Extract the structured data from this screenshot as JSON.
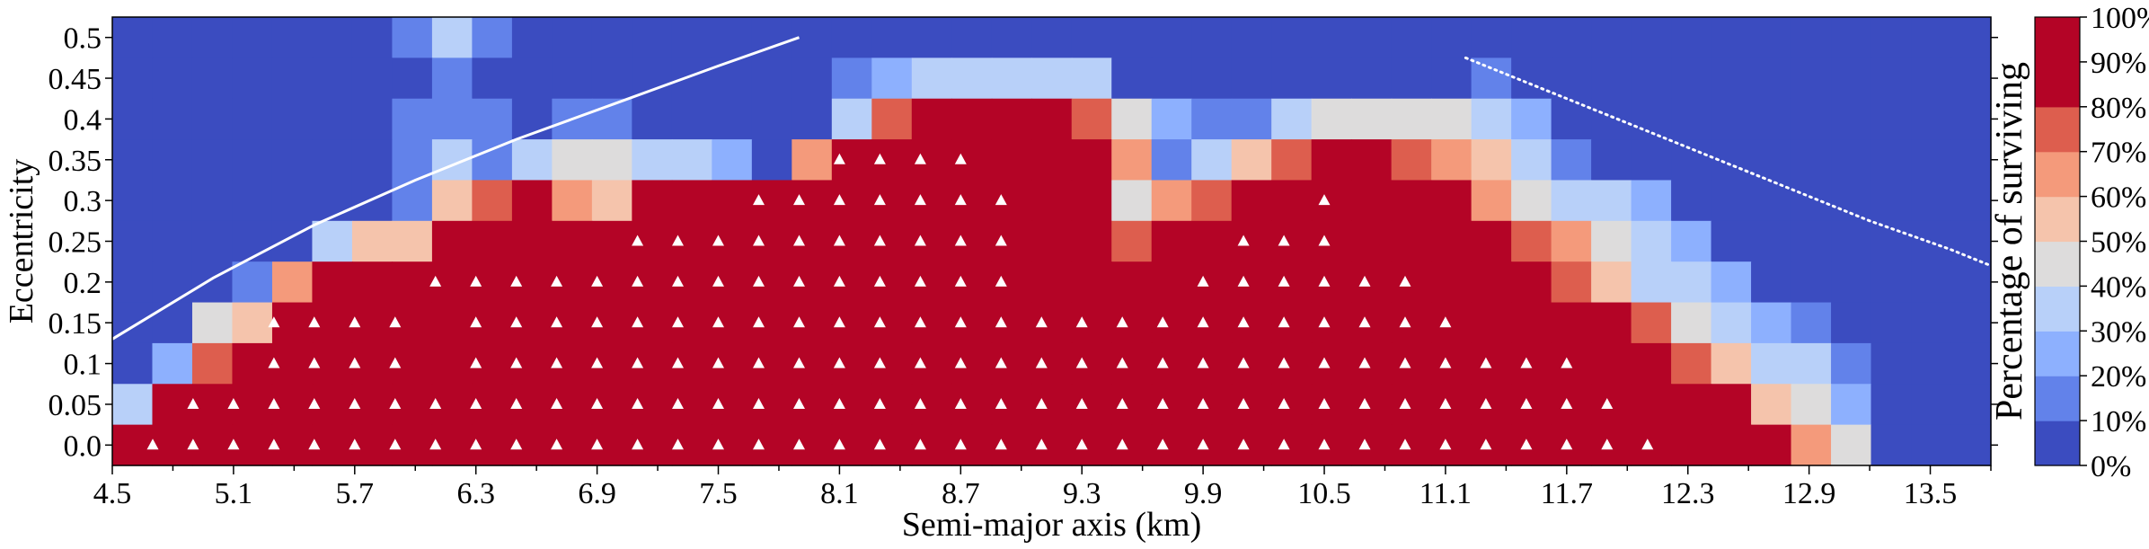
{
  "chart_data": {
    "type": "heatmap",
    "xlabel": "Semi-major axis (km)",
    "ylabel": "Eccentricity",
    "colorbar_label": "Percentage of surviving",
    "x_tick_labels": [
      "4.5",
      "5.1",
      "5.7",
      "6.3",
      "6.9",
      "7.5",
      "8.1",
      "8.7",
      "9.3",
      "9.9",
      "10.5",
      "11.1",
      "11.7",
      "12.3",
      "12.9",
      "13.5"
    ],
    "x_tick_values": [
      4.5,
      5.1,
      5.7,
      6.3,
      6.9,
      7.5,
      8.1,
      8.7,
      9.3,
      9.9,
      10.5,
      11.1,
      11.7,
      12.3,
      12.9,
      13.5
    ],
    "xlim": [
      4.5,
      13.8
    ],
    "x_cell_step": 0.2,
    "y_tick_labels": [
      "0.0",
      "0.05",
      "0.1",
      "0.15",
      "0.2",
      "0.25",
      "0.3",
      "0.35",
      "0.4",
      "0.45",
      "0.5"
    ],
    "y_values": [
      0.0,
      0.05,
      0.1,
      0.15,
      0.2,
      0.25,
      0.3,
      0.35,
      0.4,
      0.45,
      0.5
    ],
    "ylim": [
      -0.025,
      0.525
    ],
    "colorbar_tick_labels": [
      "0%",
      "10%",
      "20%",
      "30%",
      "40%",
      "50%",
      "60%",
      "70%",
      "80%",
      "90%",
      "100%"
    ],
    "colors": {
      "bins": [
        "#3b4cc0",
        "#6282ea",
        "#8db0fe",
        "#b8d0f9",
        "#dddcdc",
        "#f5c4ac",
        "#f49a7b",
        "#dd5e4e",
        "#b40426",
        "#b40426"
      ]
    },
    "curves": [
      {
        "name": "solid boundary",
        "style": "solid",
        "color": "#ffffff",
        "x": [
          4.5,
          5.0,
          5.5,
          6.0,
          6.5,
          7.0,
          7.5,
          7.9
        ],
        "y": [
          0.13,
          0.205,
          0.27,
          0.325,
          0.375,
          0.42,
          0.465,
          0.5
        ]
      },
      {
        "name": "dotted boundary",
        "style": "dotted",
        "color": "#ffffff",
        "x": [
          11.2,
          11.6,
          12.0,
          12.4,
          12.8,
          13.2,
          13.6,
          13.8
        ],
        "y": [
          0.475,
          0.435,
          0.395,
          0.355,
          0.315,
          0.275,
          0.24,
          0.22
        ]
      }
    ],
    "rows": [
      {
        "e": 0.5,
        "values": [
          0,
          0,
          0,
          0,
          0,
          0,
          0,
          10,
          30,
          10,
          0,
          0,
          0,
          0,
          0,
          0,
          0,
          0,
          0,
          0,
          0,
          0,
          0,
          0,
          0,
          0,
          0,
          0,
          0,
          0,
          0,
          0,
          0,
          0,
          0,
          0,
          0,
          0,
          0,
          0,
          0,
          0,
          0,
          0,
          0,
          0,
          0
        ]
      },
      {
        "e": 0.45,
        "values": [
          0,
          0,
          0,
          0,
          0,
          0,
          0,
          0,
          10,
          0,
          0,
          0,
          0,
          0,
          0,
          0,
          0,
          0,
          10,
          20,
          30,
          30,
          30,
          30,
          30,
          0,
          0,
          0,
          0,
          0,
          0,
          0,
          0,
          0,
          10,
          0,
          0,
          0,
          0,
          0,
          0,
          0,
          0,
          0,
          0,
          0,
          0
        ]
      },
      {
        "e": 0.4,
        "values": [
          0,
          0,
          0,
          0,
          0,
          0,
          0,
          10,
          10,
          10,
          0,
          10,
          10,
          0,
          0,
          0,
          0,
          0,
          30,
          70,
          80,
          100,
          100,
          100,
          70,
          40,
          20,
          10,
          10,
          30,
          40,
          40,
          40,
          40,
          30,
          20,
          0,
          0,
          0,
          0,
          0,
          0,
          0,
          0,
          0,
          0,
          0
        ]
      },
      {
        "e": 0.35,
        "values": [
          0,
          0,
          0,
          0,
          0,
          0,
          0,
          10,
          30,
          10,
          30,
          40,
          40,
          30,
          30,
          20,
          0,
          60,
          80,
          100,
          100,
          100,
          100,
          100,
          100,
          60,
          10,
          30,
          50,
          70,
          80,
          80,
          70,
          60,
          50,
          30,
          10,
          0,
          0,
          0,
          0,
          0,
          0,
          0,
          0,
          0,
          0
        ]
      },
      {
        "e": 0.3,
        "values": [
          0,
          0,
          0,
          0,
          0,
          0,
          0,
          10,
          50,
          70,
          80,
          60,
          50,
          80,
          80,
          100,
          100,
          100,
          100,
          100,
          100,
          100,
          100,
          100,
          100,
          40,
          60,
          70,
          100,
          100,
          100,
          100,
          100,
          80,
          60,
          40,
          30,
          30,
          20,
          0,
          0,
          0,
          0,
          0,
          0,
          0,
          0
        ]
      },
      {
        "e": 0.25,
        "values": [
          0,
          0,
          0,
          0,
          0,
          30,
          50,
          50,
          80,
          100,
          100,
          80,
          100,
          100,
          100,
          100,
          100,
          100,
          100,
          100,
          100,
          100,
          100,
          100,
          100,
          70,
          80,
          80,
          100,
          100,
          100,
          100,
          100,
          100,
          100,
          70,
          60,
          40,
          30,
          20,
          0,
          0,
          0,
          0,
          0,
          0,
          0
        ]
      },
      {
        "e": 0.2,
        "values": [
          0,
          0,
          0,
          10,
          60,
          100,
          100,
          100,
          100,
          100,
          100,
          100,
          100,
          100,
          100,
          100,
          100,
          100,
          100,
          100,
          100,
          100,
          100,
          100,
          100,
          100,
          100,
          100,
          100,
          100,
          100,
          100,
          100,
          100,
          100,
          100,
          70,
          50,
          30,
          30,
          20,
          0,
          0,
          0,
          0,
          0,
          0
        ]
      },
      {
        "e": 0.15,
        "values": [
          0,
          0,
          40,
          50,
          100,
          100,
          100,
          100,
          100,
          100,
          100,
          100,
          100,
          100,
          100,
          100,
          100,
          100,
          100,
          100,
          100,
          100,
          100,
          100,
          100,
          100,
          100,
          100,
          100,
          100,
          100,
          100,
          100,
          100,
          100,
          100,
          100,
          100,
          70,
          40,
          30,
          20,
          10,
          0,
          0,
          0,
          0
        ]
      },
      {
        "e": 0.1,
        "values": [
          0,
          20,
          70,
          80,
          100,
          100,
          100,
          100,
          100,
          100,
          100,
          100,
          100,
          100,
          100,
          100,
          100,
          100,
          100,
          100,
          100,
          100,
          100,
          100,
          100,
          100,
          100,
          100,
          100,
          100,
          100,
          100,
          100,
          100,
          100,
          100,
          100,
          100,
          100,
          70,
          50,
          30,
          30,
          10,
          0,
          0,
          0
        ]
      },
      {
        "e": 0.05,
        "values": [
          30,
          80,
          100,
          100,
          100,
          100,
          100,
          100,
          100,
          100,
          100,
          100,
          100,
          100,
          100,
          100,
          100,
          100,
          100,
          100,
          100,
          100,
          100,
          100,
          100,
          100,
          100,
          100,
          100,
          100,
          100,
          100,
          100,
          100,
          100,
          100,
          100,
          100,
          100,
          100,
          80,
          50,
          40,
          20,
          0,
          0,
          0
        ]
      },
      {
        "e": 0.0,
        "values": [
          80,
          100,
          100,
          100,
          100,
          100,
          100,
          100,
          100,
          100,
          100,
          100,
          100,
          100,
          100,
          100,
          100,
          100,
          100,
          100,
          100,
          100,
          100,
          100,
          100,
          100,
          100,
          100,
          100,
          100,
          100,
          100,
          100,
          100,
          100,
          100,
          100,
          100,
          100,
          100,
          100,
          80,
          60,
          40,
          0,
          0,
          0
        ]
      }
    ],
    "triangle_markers": [
      {
        "e": 0.35,
        "a": [
          8.1,
          8.3,
          8.5,
          8.7
        ]
      },
      {
        "e": 0.3,
        "a": [
          7.7,
          7.9,
          8.1,
          8.3,
          8.5,
          8.7,
          8.9,
          10.5
        ]
      },
      {
        "e": 0.25,
        "a": [
          7.1,
          7.3,
          7.5,
          7.7,
          7.9,
          8.1,
          8.3,
          8.5,
          8.7,
          8.9,
          10.1,
          10.3,
          10.5
        ]
      },
      {
        "e": 0.2,
        "a": [
          6.1,
          6.3,
          6.5,
          6.7,
          6.9,
          7.1,
          7.3,
          7.5,
          7.7,
          7.9,
          8.1,
          8.3,
          8.5,
          8.7,
          8.9,
          9.9,
          10.1,
          10.3,
          10.5,
          10.7,
          10.9
        ]
      },
      {
        "e": 0.15,
        "a": [
          5.3,
          5.5,
          5.7,
          5.9,
          6.3,
          6.5,
          6.7,
          6.9,
          7.1,
          7.3,
          7.5,
          7.7,
          7.9,
          8.1,
          8.3,
          8.5,
          8.7,
          8.9,
          9.1,
          9.3,
          9.5,
          9.7,
          9.9,
          10.1,
          10.3,
          10.5,
          10.7,
          10.9,
          11.1
        ]
      },
      {
        "e": 0.1,
        "a": [
          5.3,
          5.5,
          5.7,
          5.9,
          6.3,
          6.5,
          6.7,
          6.9,
          7.1,
          7.3,
          7.5,
          7.7,
          7.9,
          8.1,
          8.3,
          8.5,
          8.7,
          8.9,
          9.1,
          9.3,
          9.5,
          9.7,
          9.9,
          10.1,
          10.3,
          10.5,
          10.7,
          10.9,
          11.1,
          11.3,
          11.5,
          11.7
        ]
      },
      {
        "e": 0.05,
        "a": [
          4.9,
          5.1,
          5.3,
          5.5,
          5.7,
          5.9,
          6.1,
          6.3,
          6.5,
          6.7,
          6.9,
          7.1,
          7.3,
          7.5,
          7.7,
          7.9,
          8.1,
          8.3,
          8.5,
          8.7,
          8.9,
          9.1,
          9.3,
          9.5,
          9.7,
          9.9,
          10.1,
          10.3,
          10.5,
          10.7,
          10.9,
          11.1,
          11.3,
          11.5,
          11.7,
          11.9
        ]
      },
      {
        "e": 0.0,
        "a": [
          4.7,
          4.9,
          5.1,
          5.3,
          5.5,
          5.7,
          5.9,
          6.1,
          6.3,
          6.5,
          6.7,
          6.9,
          7.1,
          7.3,
          7.5,
          7.7,
          7.9,
          8.1,
          8.3,
          8.5,
          8.7,
          8.9,
          9.1,
          9.3,
          9.5,
          9.7,
          9.9,
          10.1,
          10.3,
          10.5,
          10.7,
          10.9,
          11.1,
          11.3,
          11.5,
          11.7,
          11.9,
          12.1
        ]
      }
    ]
  }
}
